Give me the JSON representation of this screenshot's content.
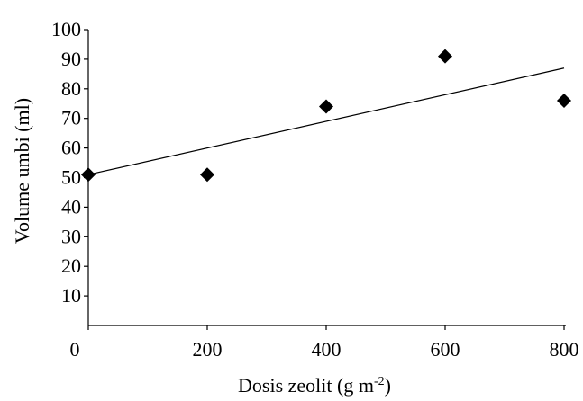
{
  "chart_data": {
    "type": "scatter",
    "title": "",
    "xlabel": "Dosis zeolit (g m",
    "xlabel_superscript": "-2",
    "xlabel_suffix": ")",
    "ylabel": "Volume umbi (ml)",
    "xlim": [
      0,
      800
    ],
    "ylim": [
      0,
      100
    ],
    "x_ticks": [
      0,
      200,
      400,
      600,
      800
    ],
    "x_tick_labels": [
      "0",
      "200",
      "400",
      "600",
      "800"
    ],
    "y_ticks": [
      10,
      20,
      30,
      40,
      50,
      60,
      70,
      80,
      90,
      100
    ],
    "y_tick_labels": [
      "10",
      "20",
      "30",
      "40",
      "50",
      "60",
      "70",
      "80",
      "90",
      "100"
    ],
    "grid": false,
    "series": [
      {
        "marker": "diamond",
        "color": "#000000",
        "points": [
          {
            "x": 0,
            "y": 51
          },
          {
            "x": 200,
            "y": 51
          },
          {
            "x": 400,
            "y": 74
          },
          {
            "x": 600,
            "y": 91
          },
          {
            "x": 800,
            "y": 76
          }
        ]
      }
    ],
    "trendline": {
      "type": "linear",
      "color": "#000000",
      "points": [
        {
          "x": 0,
          "y": 51
        },
        {
          "x": 800,
          "y": 87
        }
      ]
    }
  }
}
